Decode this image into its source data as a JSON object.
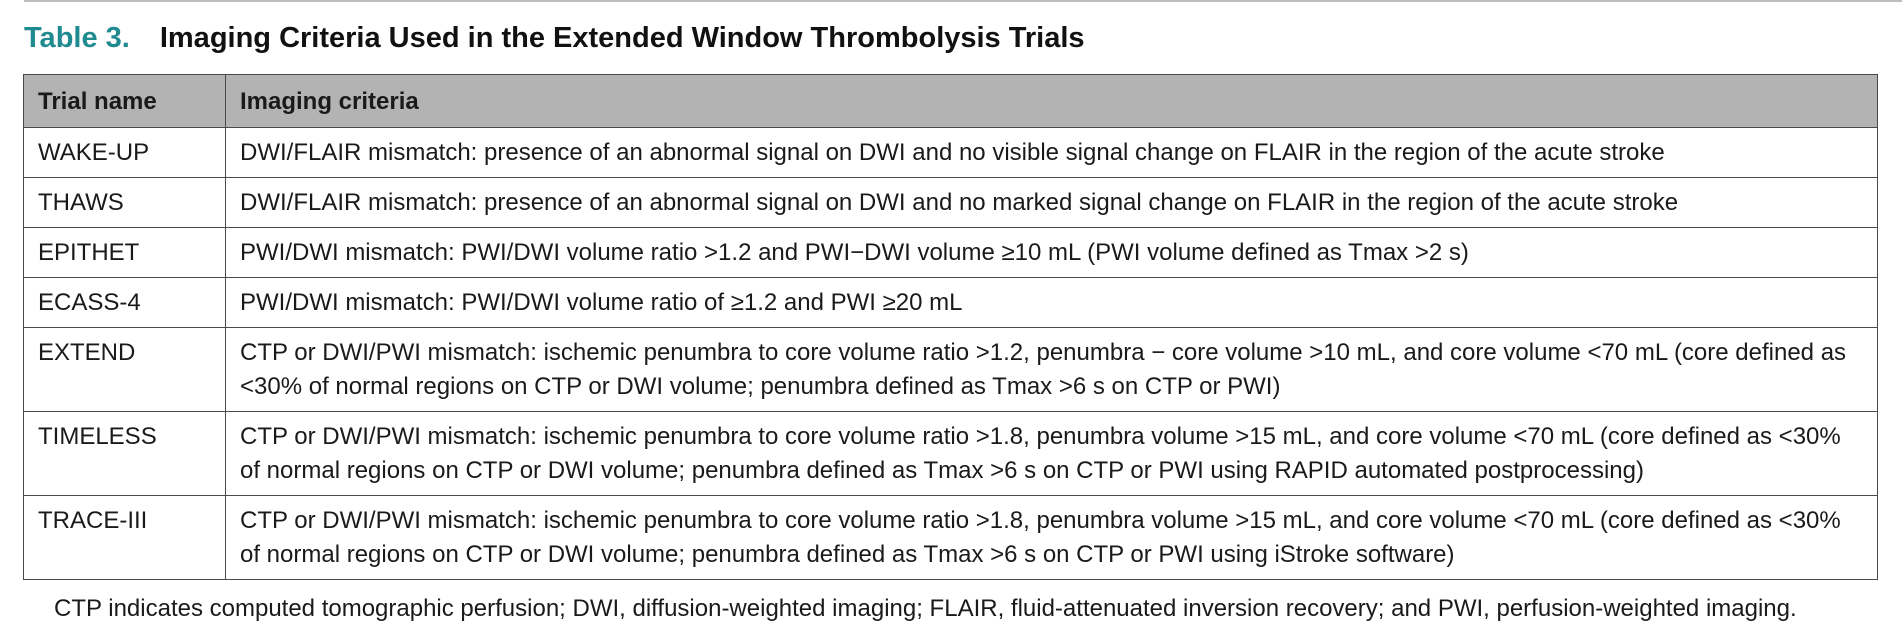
{
  "table": {
    "label": "Table 3.",
    "title": "Imaging Criteria Used in the Extended Window Thrombolysis Trials",
    "accent_color": "#1f8a8f",
    "header_bg": "#b3b3b3",
    "headers": [
      "Trial name",
      "Imaging criteria"
    ],
    "rows": [
      {
        "trial": "WAKE-UP",
        "criteria": "DWI/FLAIR mismatch: presence of an abnormal signal on DWI and no visible signal change on FLAIR in the region of the acute stroke"
      },
      {
        "trial": "THAWS",
        "criteria": "DWI/FLAIR mismatch: presence of an abnormal signal on DWI and no marked signal change on FLAIR in the region of the acute stroke"
      },
      {
        "trial": "EPITHET",
        "criteria": "PWI/DWI mismatch: PWI/DWI volume ratio >1.2 and PWI−DWI volume ≥10 mL (PWI volume defined as Tmax >2 s)"
      },
      {
        "trial": "ECASS-4",
        "criteria": "PWI/DWI mismatch: PWI/DWI volume ratio of ≥1.2 and PWI ≥20 mL"
      },
      {
        "trial": "EXTEND",
        "criteria": "CTP or DWI/PWI mismatch: ischemic penumbra to core volume ratio >1.2, penumbra − core volume >10 mL, and core volume <70 mL (core defined as <30% of normal regions on CTP or DWI volume; penumbra defined as Tmax >6 s on CTP or PWI)"
      },
      {
        "trial": "TIMELESS",
        "criteria": "CTP or DWI/PWI mismatch: ischemic penumbra to core volume ratio >1.8, penumbra volume >15 mL, and core volume <70 mL (core defined as <30% of normal regions on CTP or DWI volume; penumbra defined as Tmax >6 s on CTP or PWI using RAPID automated postprocessing)"
      },
      {
        "trial": "TRACE-III",
        "criteria": "CTP or DWI/PWI mismatch: ischemic penumbra to core volume ratio >1.8, penumbra volume >15 mL, and core volume <70 mL (core defined as <30% of normal regions on CTP or DWI volume; penumbra defined as Tmax >6 s on CTP or PWI using iStroke software)"
      }
    ],
    "footnote": "CTP indicates computed tomographic perfusion; DWI, diffusion-weighted imaging; FLAIR, fluid-attenuated inversion recovery; and PWI, perfusion-weighted imaging."
  }
}
